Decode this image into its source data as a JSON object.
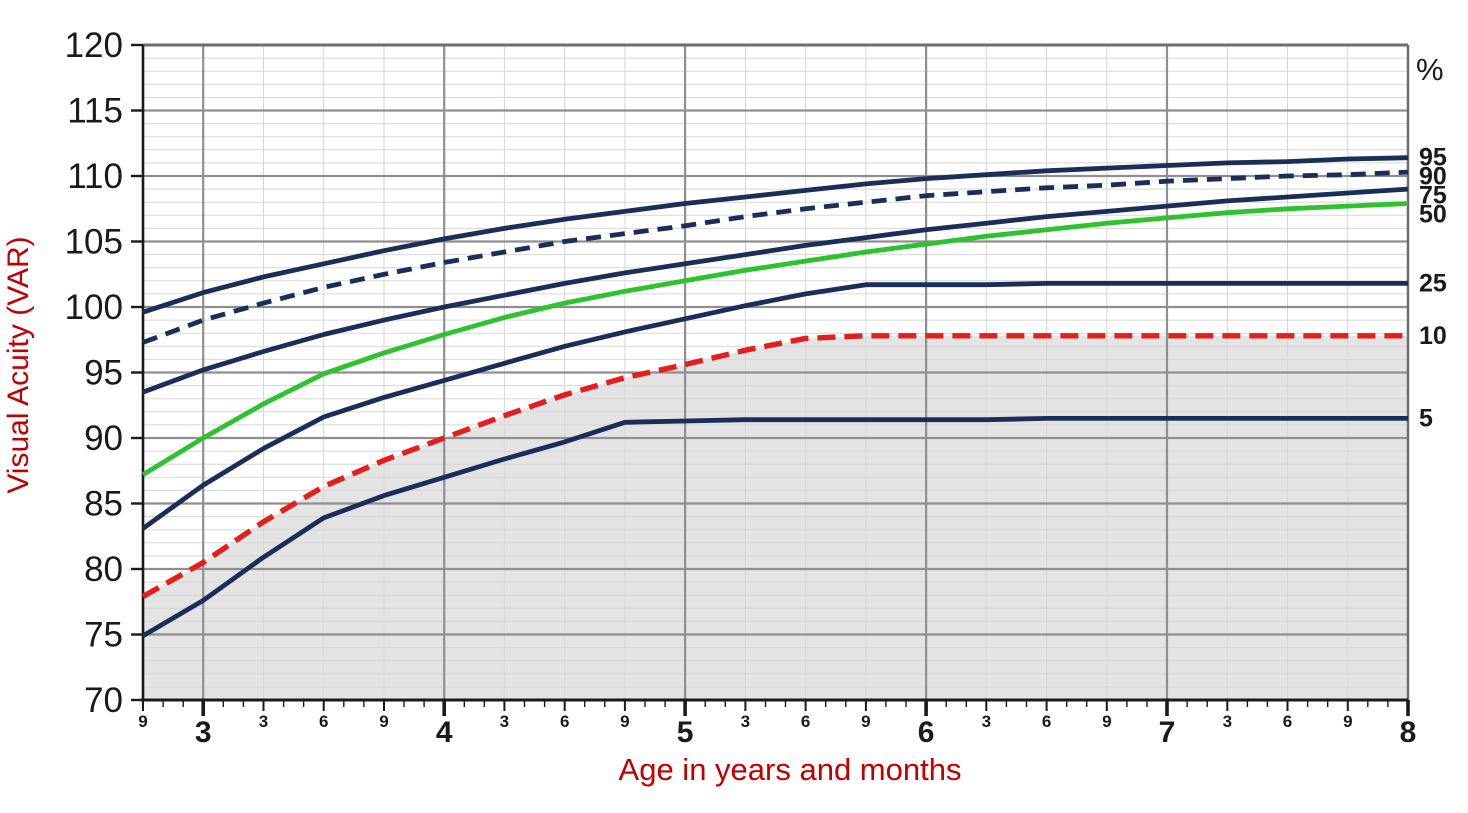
{
  "chart": {
    "y_axis_title": "Visual Acuity (VAR)",
    "x_axis_title": "Age in years and months",
    "right_header": "%",
    "title_color": "#c00000",
    "axis_text_color": "#1a1a1a"
  },
  "chart_data": {
    "type": "line",
    "title": "",
    "xlabel": "Age in years and months",
    "ylabel": "Visual Acuity (VAR)",
    "x_unit": "age_in_months",
    "xlim_months": [
      33,
      96
    ],
    "ylim": [
      70,
      120
    ],
    "y_tick_step": 5,
    "y_minor_step": 1,
    "x_gridline_every_months": 3,
    "x_minor_tick_every_months": 1,
    "grid": true,
    "legend_position": "right-edge-labels",
    "y_ticks": [
      70,
      75,
      80,
      85,
      90,
      95,
      100,
      105,
      110,
      115,
      120
    ],
    "x_ticks": [
      {
        "m": 33,
        "label": "9",
        "major": false
      },
      {
        "m": 36,
        "label": "3",
        "major": true
      },
      {
        "m": 39,
        "label": "3",
        "major": false
      },
      {
        "m": 42,
        "label": "6",
        "major": false
      },
      {
        "m": 45,
        "label": "9",
        "major": false
      },
      {
        "m": 48,
        "label": "4",
        "major": true
      },
      {
        "m": 51,
        "label": "3",
        "major": false
      },
      {
        "m": 54,
        "label": "6",
        "major": false
      },
      {
        "m": 57,
        "label": "9",
        "major": false
      },
      {
        "m": 60,
        "label": "5",
        "major": true
      },
      {
        "m": 63,
        "label": "3",
        "major": false
      },
      {
        "m": 66,
        "label": "6",
        "major": false
      },
      {
        "m": 69,
        "label": "9",
        "major": false
      },
      {
        "m": 72,
        "label": "6",
        "major": true
      },
      {
        "m": 75,
        "label": "3",
        "major": false
      },
      {
        "m": 78,
        "label": "6",
        "major": false
      },
      {
        "m": 81,
        "label": "9",
        "major": false
      },
      {
        "m": 84,
        "label": "7",
        "major": true
      },
      {
        "m": 87,
        "label": "3",
        "major": false
      },
      {
        "m": 90,
        "label": "6",
        "major": false
      },
      {
        "m": 93,
        "label": "9",
        "major": false
      },
      {
        "m": 96,
        "label": "8",
        "major": true
      }
    ],
    "x_months": [
      33,
      36,
      39,
      42,
      45,
      48,
      51,
      54,
      57,
      60,
      63,
      66,
      69,
      72,
      75,
      78,
      81,
      84,
      87,
      90,
      93,
      96
    ],
    "series": [
      {
        "name": "95",
        "percentile": 95,
        "color": "#1b2e5a",
        "style": "solid",
        "values": [
          99.6,
          101.1,
          102.3,
          103.3,
          104.3,
          105.2,
          106.0,
          106.7,
          107.3,
          107.9,
          108.4,
          108.9,
          109.4,
          109.8,
          110.1,
          110.4,
          110.6,
          110.8,
          111.0,
          111.1,
          111.3,
          111.4
        ]
      },
      {
        "name": "90",
        "percentile": 90,
        "color": "#1b2e5a",
        "style": "dashed",
        "values": [
          97.3,
          99.0,
          100.3,
          101.5,
          102.5,
          103.4,
          104.2,
          105.0,
          105.6,
          106.2,
          106.9,
          107.5,
          108.0,
          108.5,
          108.8,
          109.1,
          109.3,
          109.6,
          109.8,
          110.0,
          110.1,
          110.3
        ]
      },
      {
        "name": "75",
        "percentile": 75,
        "color": "#1b2e5a",
        "style": "solid",
        "values": [
          93.5,
          95.2,
          96.6,
          97.9,
          99.0,
          100.0,
          100.9,
          101.8,
          102.6,
          103.3,
          104.0,
          104.7,
          105.3,
          105.9,
          106.4,
          106.9,
          107.3,
          107.7,
          108.1,
          108.4,
          108.7,
          109.0
        ]
      },
      {
        "name": "50",
        "percentile": 50,
        "color": "#2ec32e",
        "style": "solid",
        "values": [
          87.2,
          90.0,
          92.6,
          94.9,
          96.5,
          97.9,
          99.2,
          100.3,
          101.2,
          102.0,
          102.8,
          103.5,
          104.2,
          104.8,
          105.4,
          105.9,
          106.4,
          106.8,
          107.2,
          107.5,
          107.7,
          107.9
        ]
      },
      {
        "name": "25",
        "percentile": 25,
        "color": "#1b2e5a",
        "style": "solid",
        "values": [
          83.1,
          86.4,
          89.2,
          91.6,
          93.1,
          94.4,
          95.7,
          97.0,
          98.1,
          99.1,
          100.1,
          101.0,
          101.7,
          101.7,
          101.7,
          101.8,
          101.8,
          101.8,
          101.8,
          101.8,
          101.8,
          101.8
        ]
      },
      {
        "name": "10",
        "percentile": 10,
        "color": "#e61d1d",
        "style": "dashed",
        "values": [
          77.9,
          80.5,
          83.6,
          86.3,
          88.3,
          90.0,
          91.7,
          93.3,
          94.6,
          95.6,
          96.7,
          97.6,
          97.8,
          97.8,
          97.8,
          97.8,
          97.8,
          97.8,
          97.8,
          97.8,
          97.8,
          97.8
        ]
      },
      {
        "name": "5",
        "percentile": 5,
        "color": "#1b2e5a",
        "style": "solid",
        "values": [
          74.9,
          77.6,
          80.9,
          83.9,
          85.6,
          87.0,
          88.4,
          89.7,
          91.2,
          91.3,
          91.4,
          91.4,
          91.4,
          91.4,
          91.4,
          91.5,
          91.5,
          91.5,
          91.5,
          91.5,
          91.5,
          91.5
        ]
      }
    ],
    "right_edge_labels": [
      "95",
      "90",
      "75",
      "50",
      "25",
      "10",
      "5"
    ],
    "shaded_region": {
      "description": "area below 10th centile curve",
      "below_percentile": 10,
      "fill": "#e4e4e4"
    },
    "colors": {
      "navy_centile": "#1b2e5a",
      "median_green": "#2ec32e",
      "tenth_red": "#e61d1d",
      "grid_minor": "#d7d7d7",
      "grid_major": "#8f8f8f",
      "axis": "#1a1a1a",
      "shade": "#e4e4e4"
    }
  }
}
